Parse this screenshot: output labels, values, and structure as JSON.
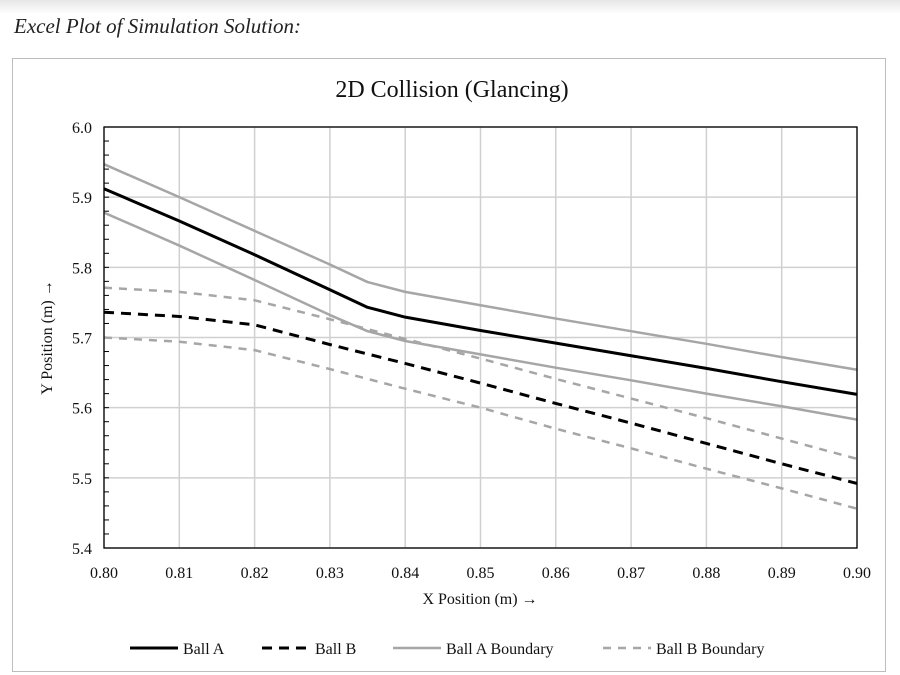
{
  "caption": "Excel Plot of Simulation Solution:",
  "chart_data": {
    "type": "line",
    "title": "2D Collision (Glancing)",
    "xlabel": "X Position (m) →",
    "ylabel": "Y Position (m) →",
    "xlim": [
      0.8,
      0.9
    ],
    "ylim": [
      5.4,
      6.0
    ],
    "xticks": [
      "0.80",
      "0.81",
      "0.82",
      "0.83",
      "0.84",
      "0.85",
      "0.86",
      "0.87",
      "0.88",
      "0.89",
      "0.90"
    ],
    "yticks": [
      "5.4",
      "5.5",
      "5.6",
      "5.7",
      "5.8",
      "5.9",
      "6.0"
    ],
    "grid": true,
    "legend_position": "bottom",
    "series": [
      {
        "name": "Ball A",
        "color": "#000000",
        "style": "solid",
        "x": [
          0.8,
          0.81,
          0.82,
          0.83,
          0.835,
          0.84,
          0.85,
          0.86,
          0.87,
          0.88,
          0.89,
          0.9
        ],
        "y": [
          5.912,
          5.866,
          5.818,
          5.768,
          5.743,
          5.729,
          5.71,
          5.692,
          5.674,
          5.656,
          5.637,
          5.619
        ]
      },
      {
        "name": "Ball B",
        "color": "#000000",
        "style": "dashed",
        "x": [
          0.8,
          0.81,
          0.82,
          0.83,
          0.84,
          0.85,
          0.86,
          0.87,
          0.88,
          0.89,
          0.9
        ],
        "y": [
          5.736,
          5.73,
          5.718,
          5.69,
          5.663,
          5.635,
          5.606,
          5.578,
          5.549,
          5.52,
          5.492
        ]
      },
      {
        "name": "Ball A Boundary",
        "color": "#a6a6a6",
        "style": "solid",
        "x": [
          0.8,
          0.81,
          0.82,
          0.83,
          0.835,
          0.84,
          0.85,
          0.86,
          0.87,
          0.88,
          0.89,
          0.9
        ],
        "y": [
          5.947,
          5.9,
          5.852,
          5.804,
          5.779,
          5.765,
          5.746,
          5.727,
          5.709,
          5.691,
          5.672,
          5.654
        ]
      },
      {
        "name": "",
        "color": "#a6a6a6",
        "style": "solid",
        "x": [
          0.8,
          0.81,
          0.82,
          0.83,
          0.835,
          0.84,
          0.85,
          0.86,
          0.87,
          0.88,
          0.89,
          0.9
        ],
        "y": [
          5.878,
          5.831,
          5.782,
          5.732,
          5.709,
          5.695,
          5.676,
          5.657,
          5.639,
          5.62,
          5.602,
          5.583
        ]
      },
      {
        "name": "Ball B Boundary",
        "color": "#a6a6a6",
        "style": "dashed",
        "x": [
          0.8,
          0.81,
          0.82,
          0.83,
          0.84,
          0.85,
          0.86,
          0.87,
          0.88,
          0.89,
          0.9
        ],
        "y": [
          5.771,
          5.765,
          5.753,
          5.726,
          5.698,
          5.67,
          5.641,
          5.613,
          5.585,
          5.556,
          5.527
        ]
      },
      {
        "name": "",
        "color": "#a6a6a6",
        "style": "dashed",
        "x": [
          0.8,
          0.81,
          0.82,
          0.83,
          0.84,
          0.85,
          0.86,
          0.87,
          0.88,
          0.89,
          0.9
        ],
        "y": [
          5.7,
          5.694,
          5.682,
          5.655,
          5.627,
          5.6,
          5.57,
          5.542,
          5.513,
          5.485,
          5.456
        ]
      }
    ]
  }
}
